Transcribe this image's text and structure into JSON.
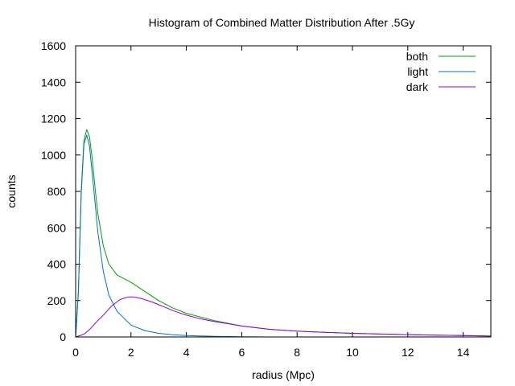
{
  "chart_data": {
    "type": "line",
    "title": "Histogram of Combined Matter Distribution After .5Gy",
    "xlabel": "radius (Mpc)",
    "ylabel": "counts",
    "xlim": [
      0,
      15
    ],
    "ylim": [
      0,
      1600
    ],
    "x_ticks": [
      0,
      2,
      4,
      6,
      8,
      10,
      12,
      14
    ],
    "y_ticks": [
      0,
      200,
      400,
      600,
      800,
      1000,
      1200,
      1400,
      1600
    ],
    "grid": false,
    "legend_position": "top-right",
    "series": [
      {
        "name": "both",
        "color": "#00a000",
        "x": [
          0,
          0.1,
          0.2,
          0.3,
          0.4,
          0.5,
          0.6,
          0.7,
          0.8,
          1.0,
          1.2,
          1.5,
          2.0,
          2.5,
          3.0,
          3.5,
          4.0,
          5.0,
          6.0,
          7.0,
          8.0,
          9.0,
          10.0,
          11.0,
          12.0,
          13.0,
          14.0,
          15.0
        ],
        "y": [
          0,
          250,
          800,
          1080,
          1140,
          1100,
          980,
          820,
          680,
          500,
          400,
          340,
          300,
          250,
          200,
          160,
          130,
          90,
          60,
          42,
          32,
          25,
          20,
          16,
          13,
          10,
          8,
          5
        ]
      },
      {
        "name": "light",
        "color": "#0072bd",
        "x": [
          0,
          0.1,
          0.2,
          0.3,
          0.4,
          0.5,
          0.6,
          0.7,
          0.8,
          1.0,
          1.2,
          1.5,
          2.0,
          2.5,
          3.0,
          3.5,
          4.0,
          5.0,
          6.0,
          7.0
        ],
        "y": [
          0,
          240,
          780,
          1060,
          1110,
          1050,
          900,
          740,
          580,
          360,
          230,
          140,
          65,
          35,
          20,
          12,
          8,
          3,
          1,
          0
        ]
      },
      {
        "name": "dark",
        "color": "#9400d3",
        "x": [
          0,
          0.3,
          0.5,
          0.8,
          1.0,
          1.3,
          1.6,
          1.9,
          2.1,
          2.4,
          2.8,
          3.2,
          3.6,
          4.0,
          4.5,
          5.0,
          6.0,
          7.0,
          8.0,
          9.0,
          10.0,
          11.0,
          12.0,
          13.0,
          14.0,
          15.0
        ],
        "y": [
          0,
          15,
          40,
          90,
          120,
          170,
          205,
          220,
          220,
          210,
          190,
          165,
          140,
          120,
          100,
          85,
          60,
          42,
          32,
          25,
          20,
          16,
          13,
          10,
          8,
          5
        ]
      }
    ]
  }
}
